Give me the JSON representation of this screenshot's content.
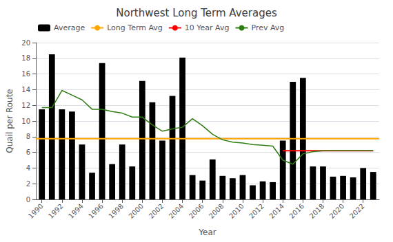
{
  "chart_data": {
    "type": "bar",
    "title": "Northwest Long Term Averages",
    "xlabel": "Year",
    "ylabel": "Quail per Route",
    "x": [
      1990,
      1991,
      1992,
      1993,
      1994,
      1995,
      1996,
      1997,
      1998,
      1999,
      2000,
      2001,
      2002,
      2003,
      2004,
      2005,
      2006,
      2007,
      2008,
      2009,
      2010,
      2011,
      2012,
      2013,
      2014,
      2015,
      2016,
      2017,
      2018,
      2019,
      2020,
      2021,
      2022,
      2023
    ],
    "series": [
      {
        "name": "Average",
        "type": "bar",
        "color": "#000000",
        "values": [
          11.5,
          18.5,
          11.5,
          11.2,
          7.0,
          3.4,
          17.4,
          4.5,
          7.0,
          4.2,
          15.1,
          12.4,
          7.5,
          13.2,
          18.1,
          3.1,
          2.4,
          5.1,
          3.0,
          2.7,
          3.1,
          1.8,
          2.3,
          2.2,
          7.5,
          15.0,
          15.5,
          4.2,
          4.2,
          2.9,
          3.0,
          2.8,
          4.0,
          3.5
        ]
      },
      {
        "name": "Long Term Avg",
        "type": "line",
        "color": "#FFA500",
        "value": 7.75
      },
      {
        "name": "10 Year Avg",
        "type": "line",
        "color": "#FF0000",
        "x": [
          2014,
          2023
        ],
        "values": [
          6.2,
          6.2
        ]
      },
      {
        "name": "Prev Avg",
        "type": "line",
        "color": "#2E7D12",
        "values": [
          11.7,
          11.7,
          13.9,
          13.3,
          12.7,
          11.5,
          11.5,
          11.2,
          11.0,
          10.5,
          10.5,
          9.5,
          8.7,
          9.0,
          9.2,
          10.3,
          9.4,
          8.3,
          7.6,
          7.3,
          7.2,
          7.0,
          6.9,
          6.8,
          5.0,
          4.5,
          5.8,
          6.1,
          6.2,
          6.2,
          6.2,
          6.2,
          6.2,
          6.2
        ]
      }
    ],
    "xlim": [
      1989.4,
      2023.6
    ],
    "xticks": [
      1990,
      1992,
      1994,
      1996,
      1998,
      2000,
      2002,
      2004,
      2006,
      2008,
      2010,
      2012,
      2014,
      2016,
      2018,
      2020,
      2022
    ],
    "ylim": [
      0,
      20
    ],
    "yticks": [
      0,
      2,
      4,
      6,
      8,
      10,
      12,
      14,
      16,
      18,
      20
    ],
    "grid": true,
    "legend": "upper left"
  }
}
